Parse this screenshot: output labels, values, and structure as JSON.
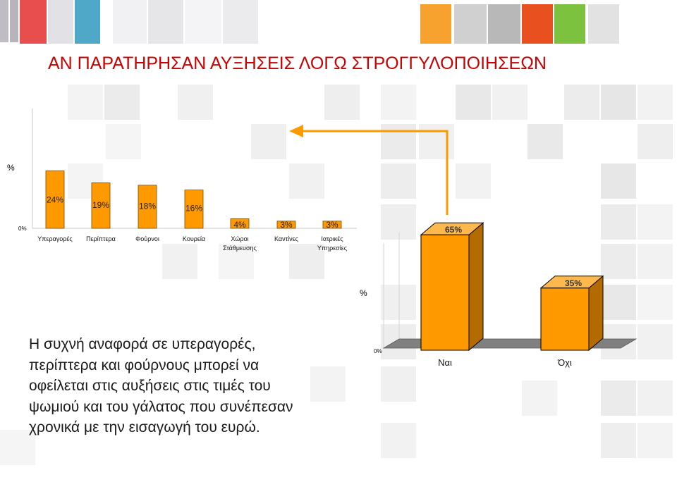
{
  "slide": {
    "title": "ΑΝ ΠΑΡΑΤΗΡΗΣΑΝ ΑΥΞΗΣΕΙΣ ΛΟΓΩ ΣΤΡΟΓΓΥΛΟΠΟΙΗΣΕΩΝ",
    "body_lines": [
      "Η συχνή αναφορά σε υπεραγορές,",
      "περίπτερα και φούρνους μπορεί να",
      "οφείλεται στις αυξήσεις στις τιμές του",
      "ψωμιού και του γάλατος που συνέπεσαν",
      "χρονικά με την εισαγωγή του ευρώ."
    ],
    "colors": {
      "title": "#cc0000",
      "bar_fill": "#ff9900",
      "bar_side": "#b36b00",
      "bar_top": "#ffb84d",
      "floor": "#808080",
      "arrow": "#ff9900"
    }
  },
  "chart_data": [
    {
      "type": "bar",
      "ylabel": "%",
      "y_tick_labels": [
        "0%"
      ],
      "categories": [
        [
          "Υπεραγορές"
        ],
        [
          "Περίπτερα"
        ],
        [
          "Φούρνοι"
        ],
        [
          "Κουρεία"
        ],
        [
          "Χώροι",
          "Στάθμευσης"
        ],
        [
          "Καντίνες"
        ],
        [
          "Ιατρικές",
          "Υπηρεσίες"
        ]
      ],
      "values": [
        24,
        19,
        18,
        16,
        4,
        3,
        3
      ],
      "value_labels": [
        "24%",
        "19%",
        "18%",
        "16%",
        "4%",
        "3%",
        "3%"
      ],
      "ylim": [
        0,
        100
      ],
      "grid": false,
      "legend": "none"
    },
    {
      "type": "bar",
      "ylabel": "%",
      "y_tick_labels": [
        "0%"
      ],
      "categories": [
        "Ναι",
        "Όχι"
      ],
      "values": [
        65,
        35
      ],
      "value_labels": [
        "65%",
        "35%"
      ],
      "ylim": [
        0,
        100
      ],
      "grid": false,
      "legend": "none",
      "style": "3d"
    }
  ]
}
